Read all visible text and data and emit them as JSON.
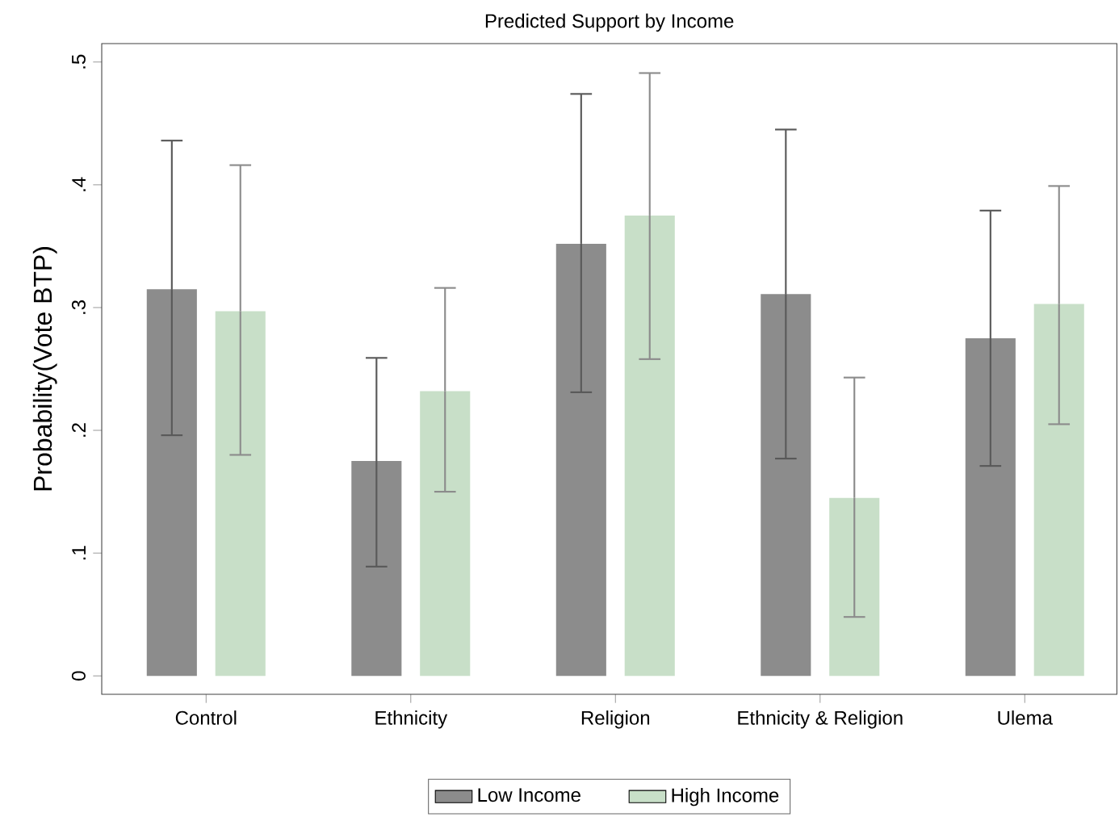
{
  "chart_data": {
    "type": "bar",
    "title": "Predicted Support by Income",
    "ylabel": "Probability(Vote BTP)",
    "categories": [
      "Control",
      "Ethnicity",
      "Religion",
      "Ethnicity & Religion",
      "Ulema"
    ],
    "series": [
      {
        "name": "Low Income",
        "color": "#8c8c8c",
        "values": [
          0.315,
          0.175,
          0.352,
          0.311,
          0.275
        ],
        "errors": [
          [
            0.196,
            0.436
          ],
          [
            0.089,
            0.259
          ],
          [
            0.231,
            0.474
          ],
          [
            0.177,
            0.445
          ],
          [
            0.171,
            0.379
          ]
        ]
      },
      {
        "name": "High Income",
        "color": "#c8dfc8",
        "values": [
          0.297,
          0.232,
          0.375,
          0.145,
          0.303
        ],
        "errors": [
          [
            0.18,
            0.416
          ],
          [
            0.15,
            0.316
          ],
          [
            0.258,
            0.491
          ],
          [
            0.048,
            0.243
          ],
          [
            0.205,
            0.399
          ]
        ]
      }
    ],
    "ylim": [
      -0.015,
      0.515
    ],
    "yticks": [
      0,
      {
        "value": 0.1,
        "label": ".1"
      },
      {
        "value": 0.2,
        "label": ".2"
      },
      {
        "value": 0.3,
        "label": ".3"
      },
      {
        "value": 0.4,
        "label": ".4"
      },
      {
        "value": 0.5,
        "label": ".5"
      }
    ],
    "legend": "bottom",
    "grid": false
  }
}
